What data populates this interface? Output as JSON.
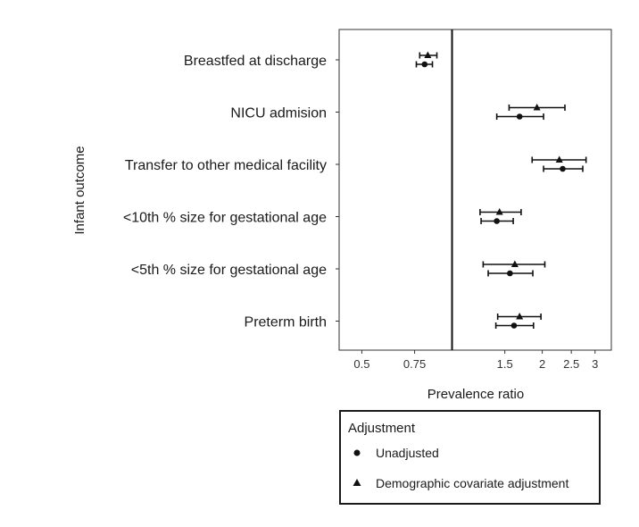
{
  "chart_data": {
    "type": "forest",
    "xlabel": "Prevalence ratio",
    "ylabel": "Infant outcome",
    "x_scale": "log",
    "xlim": [
      0.42,
      3.4
    ],
    "x_ticks": [
      0.5,
      0.75,
      1.5,
      2,
      2.5,
      3
    ],
    "x_tick_labels": [
      "0.5",
      "0.75",
      "1.5",
      "2",
      "2.5",
      "3"
    ],
    "reference_line": 1,
    "categories": [
      "Breastfed at discharge",
      "NICU admision",
      "Transfer to other medical facility",
      "<10th % size for gestational age",
      "<5th % size for gestational age",
      "Preterm birth"
    ],
    "series": [
      {
        "name": "Demographic covariate adjustment",
        "marker": "triangle",
        "estimates": [
          0.83,
          1.92,
          2.28,
          1.44,
          1.62,
          1.68
        ],
        "lower": [
          0.78,
          1.55,
          1.85,
          1.24,
          1.27,
          1.42
        ],
        "upper": [
          0.89,
          2.38,
          2.8,
          1.7,
          2.04,
          1.98
        ]
      },
      {
        "name": "Unadjusted",
        "marker": "circle",
        "estimates": [
          0.81,
          1.68,
          2.34,
          1.41,
          1.56,
          1.61
        ],
        "lower": [
          0.76,
          1.41,
          2.02,
          1.25,
          1.32,
          1.4
        ],
        "upper": [
          0.86,
          2.02,
          2.73,
          1.6,
          1.86,
          1.87
        ]
      }
    ],
    "legend": {
      "title": "Adjustment",
      "position": "bottom",
      "entries": [
        {
          "label": "Unadjusted",
          "marker": "circle"
        },
        {
          "label": "Demographic covariate adjustment",
          "marker": "triangle"
        }
      ]
    },
    "grid": false
  }
}
